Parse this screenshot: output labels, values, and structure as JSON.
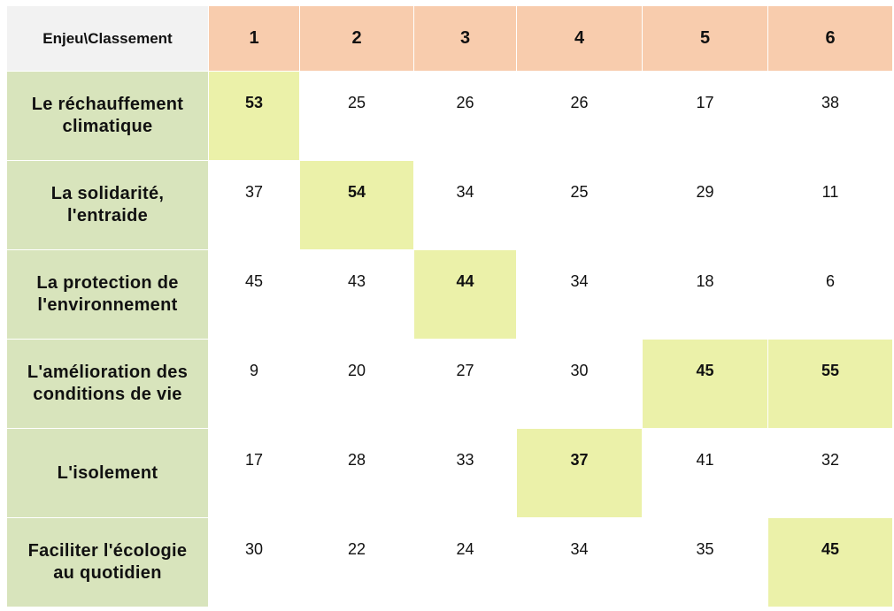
{
  "table": {
    "corner_label": "Enjeu\\Classement",
    "ranks": [
      "1",
      "2",
      "3",
      "4",
      "5",
      "6"
    ],
    "rows": [
      {
        "label_lines": [
          "Le réchauffement",
          "climatique"
        ],
        "values": [
          "53",
          "25",
          "26",
          "26",
          "17",
          "38"
        ],
        "highlight": [
          0
        ]
      },
      {
        "label_lines": [
          "La solidarité,",
          "l'entraide"
        ],
        "values": [
          "37",
          "54",
          "34",
          "25",
          "29",
          "11"
        ],
        "highlight": [
          1
        ]
      },
      {
        "label_lines": [
          "La protection de",
          "l'environnement"
        ],
        "values": [
          "45",
          "43",
          "44",
          "34",
          "18",
          "6"
        ],
        "highlight": [
          2
        ]
      },
      {
        "label_lines": [
          "L'amélioration des",
          "conditions de vie"
        ],
        "values": [
          "9",
          "20",
          "27",
          "30",
          "45",
          "55"
        ],
        "highlight": [
          4,
          5
        ]
      },
      {
        "label_lines": [
          "L'isolement"
        ],
        "values": [
          "17",
          "28",
          "33",
          "37",
          "41",
          "32"
        ],
        "highlight": [
          3
        ]
      },
      {
        "label_lines": [
          "Faciliter l'écologie",
          "au quotidien"
        ],
        "values": [
          "30",
          "22",
          "24",
          "34",
          "35",
          "45"
        ],
        "highlight": [
          5
        ]
      }
    ]
  },
  "colors": {
    "header_rank_bg": "#f8ccad",
    "row_header_bg": "#d8e4bc",
    "highlight_bg": "#ebf1a9",
    "corner_bg": "#f2f2f2"
  }
}
